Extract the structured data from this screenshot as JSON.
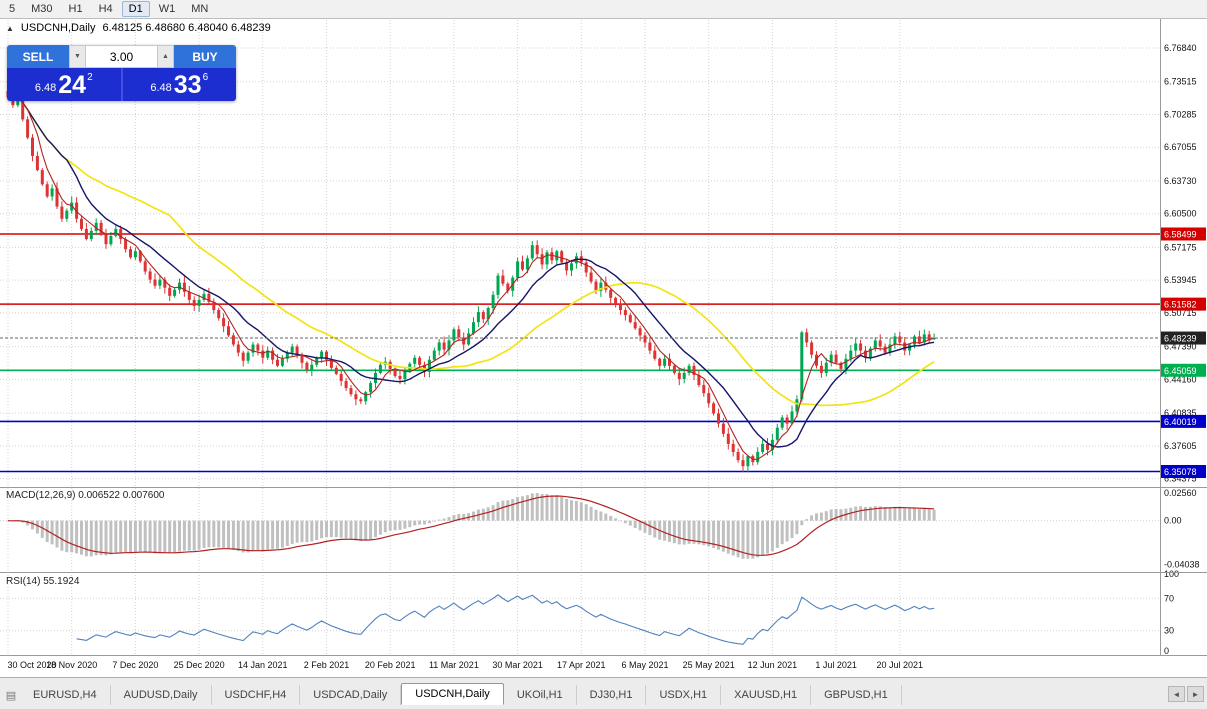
{
  "toolbar": {
    "timeframes": [
      {
        "label": "5",
        "active": false
      },
      {
        "label": "M30",
        "active": false
      },
      {
        "label": "H1",
        "active": false
      },
      {
        "label": "H4",
        "active": false
      },
      {
        "label": "D1",
        "active": true
      },
      {
        "label": "W1",
        "active": false
      },
      {
        "label": "MN",
        "active": false
      }
    ]
  },
  "chart_header": {
    "title": "USDCNH,Daily",
    "ohlc": "6.48125 6.48680 6.48040 6.48239"
  },
  "trade_widget": {
    "sell_label": "SELL",
    "buy_label": "BUY",
    "lot_size": "3.00",
    "bid": {
      "prefix": "6.48",
      "pips": "24",
      "sup": "2"
    },
    "ask": {
      "prefix": "6.48",
      "pips": "33",
      "sup": "6"
    }
  },
  "indicators": {
    "macd_label": "MACD(12,26,9) 0.006522 0.007600",
    "rsi_label": "RSI(14) 55.1924"
  },
  "icons": {
    "collapse_icon": "▲",
    "spinner_down": "▼",
    "spinner_up": "▲",
    "tab_list_icon": "▤",
    "scroll_left": "◄",
    "scroll_right": "►"
  },
  "bottom_tabs": [
    {
      "label": "EURUSD,H4",
      "active": false
    },
    {
      "label": "AUDUSD,Daily",
      "active": false
    },
    {
      "label": "USDCHF,H4",
      "active": false
    },
    {
      "label": "USDCAD,Daily",
      "active": false
    },
    {
      "label": "USDCNH,Daily",
      "active": true
    },
    {
      "label": "UKOil,H1",
      "active": false
    },
    {
      "label": "DJ30,H1",
      "active": false
    },
    {
      "label": "USDX,H1",
      "active": false
    },
    {
      "label": "XAUUSD,H1",
      "active": false
    },
    {
      "label": "GBPUSD,H1",
      "active": false
    }
  ],
  "chart_data": {
    "type": "candlestick",
    "symbol": "USDCNH",
    "timeframe": "Daily",
    "last_ohlc": {
      "open": 6.48125,
      "high": 6.4868,
      "low": 6.4804,
      "close": 6.48239
    },
    "closes": [
      6.72,
      6.712,
      6.728,
      6.698,
      6.68,
      6.662,
      6.648,
      6.634,
      6.622,
      6.63,
      6.612,
      6.6,
      6.608,
      6.616,
      6.6,
      6.59,
      6.58,
      6.588,
      6.596,
      6.585,
      6.575,
      6.583,
      6.59,
      6.58,
      6.57,
      6.562,
      6.568,
      6.558,
      6.548,
      6.54,
      6.534,
      6.54,
      6.532,
      6.524,
      6.53,
      6.537,
      6.528,
      6.52,
      6.514,
      6.52,
      6.526,
      6.518,
      6.51,
      6.502,
      6.494,
      6.485,
      6.476,
      6.468,
      6.46,
      6.468,
      6.476,
      6.47,
      6.463,
      6.47,
      6.461,
      6.455,
      6.462,
      6.468,
      6.474,
      6.466,
      6.458,
      6.451,
      6.456,
      6.463,
      6.469,
      6.461,
      6.453,
      6.447,
      6.44,
      6.433,
      6.427,
      6.422,
      6.42,
      6.429,
      6.438,
      6.448,
      6.456,
      6.459,
      6.452,
      6.445,
      6.442,
      6.45,
      6.457,
      6.463,
      6.456,
      6.449,
      6.461,
      6.47,
      6.478,
      6.471,
      6.48,
      6.491,
      6.483,
      6.476,
      6.487,
      6.498,
      6.508,
      6.501,
      6.512,
      6.525,
      6.544,
      6.536,
      6.529,
      6.542,
      6.558,
      6.55,
      6.561,
      6.574,
      6.565,
      6.555,
      6.567,
      6.559,
      6.568,
      6.557,
      6.549,
      6.556,
      6.563,
      6.557,
      6.547,
      6.538,
      6.529,
      6.537,
      6.53,
      6.522,
      6.516,
      6.51,
      6.505,
      6.498,
      6.492,
      6.485,
      6.478,
      6.47,
      6.462,
      6.455,
      6.462,
      6.455,
      6.448,
      6.442,
      6.448,
      6.455,
      6.446,
      6.436,
      6.428,
      6.418,
      6.408,
      6.398,
      6.388,
      6.378,
      6.37,
      6.362,
      6.356,
      6.366,
      6.36,
      6.37,
      6.378,
      6.372,
      6.382,
      6.394,
      6.404,
      6.398,
      6.41,
      6.422,
      6.488,
      6.478,
      6.466,
      6.455,
      6.448,
      6.458,
      6.466,
      6.458,
      6.452,
      6.462,
      6.47,
      6.477,
      6.47,
      6.463,
      6.472,
      6.48,
      6.474,
      6.468,
      6.476,
      6.484,
      6.478,
      6.47,
      6.476,
      6.484,
      6.478,
      6.486,
      6.48,
      6.48239
    ],
    "bars_per_label": 13,
    "x_labels": [
      "30 Oct 2020",
      "18 Nov 2020",
      "7 Dec 2020",
      "25 Dec 2020",
      "14 Jan 2021",
      "2 Feb 2021",
      "20 Feb 2021",
      "11 Mar 2021",
      "30 Mar 2021",
      "17 Apr 2021",
      "6 May 2021",
      "25 May 2021",
      "12 Jun 2021",
      "1 Jul 2021",
      "20 Jul 2021"
    ],
    "y_ticks": [
      6.7684,
      6.73515,
      6.70285,
      6.67055,
      6.6373,
      6.605,
      6.57175,
      6.53945,
      6.50715,
      6.4739,
      6.4416,
      6.40835,
      6.37605,
      6.34375
    ],
    "y_range": [
      6.3355,
      6.796
    ],
    "hlines": [
      {
        "value": 6.58499,
        "label": "6.58499",
        "color": "#d40000"
      },
      {
        "value": 6.51582,
        "label": "6.51582",
        "color": "#d40000"
      },
      {
        "value": 6.45059,
        "label": "6.45059",
        "color": "#00b050"
      },
      {
        "value": 6.40019,
        "label": "6.40019",
        "color": "#0000c8"
      },
      {
        "value": 6.35078,
        "label": "6.35078",
        "color": "#0000c8"
      }
    ],
    "current_price": {
      "value": 6.48239,
      "label": "6.48239",
      "color": "#222222"
    },
    "candle_colors": {
      "up": "#00a651",
      "down": "#dd3333"
    },
    "moving_averages": [
      {
        "period": 34,
        "color": "#f2e414",
        "width": 1.7
      },
      {
        "period": 13,
        "color": "#141668",
        "width": 1.4
      },
      {
        "period": 5,
        "color": "#b22222",
        "width": 1.1
      }
    ],
    "macd": {
      "params": "12,26,9",
      "main": 0.006522,
      "signal": 0.0076,
      "range": [
        -0.0475,
        0.0293
      ],
      "y_ticks": [
        {
          "v": 0.0256,
          "label": "0.02560"
        },
        {
          "v": 0.0,
          "label": "0.00"
        },
        {
          "v": -0.04038,
          "label": "-0.04038"
        }
      ],
      "hist_color": "#c0c0c0",
      "signal_color": "#b22222"
    },
    "rsi": {
      "period": 14,
      "value": 55.1924,
      "range": [
        0,
        100
      ],
      "y_ticks": [
        100,
        70,
        30,
        0
      ],
      "levels": [
        70,
        30
      ],
      "color": "#4f81bd"
    }
  }
}
